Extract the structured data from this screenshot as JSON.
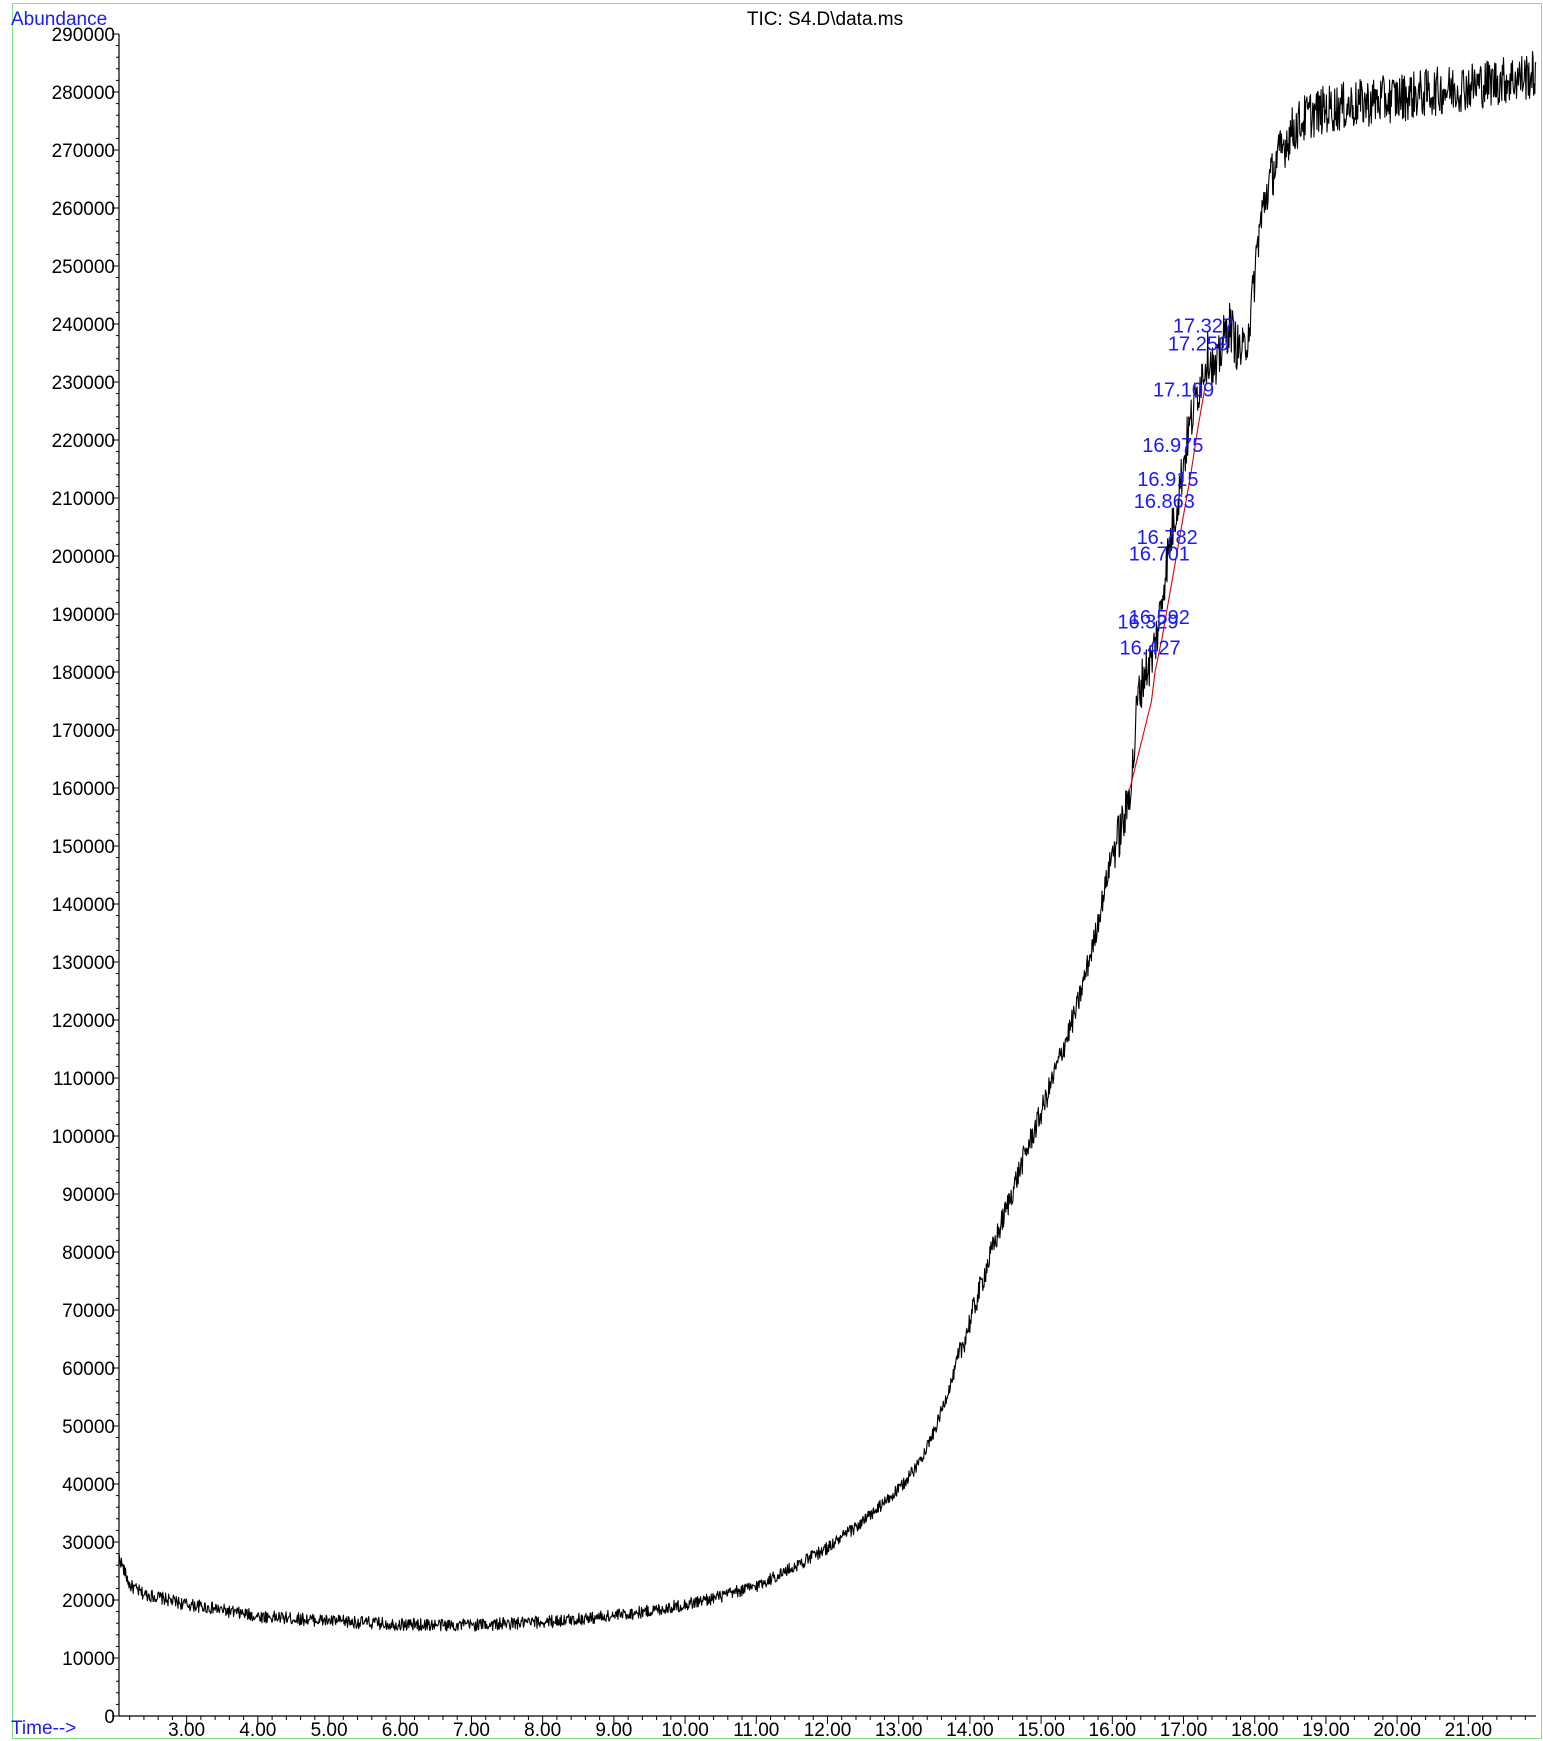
{
  "chart_data": {
    "type": "line",
    "title": "TIC: S4.D\\data.ms",
    "ylabel": "Abundance",
    "xlabel": "Time-->",
    "xlim": [
      2.05,
      21.95
    ],
    "ylim": [
      0,
      290000
    ],
    "y_ticks": [
      0,
      10000,
      20000,
      30000,
      40000,
      50000,
      60000,
      70000,
      80000,
      90000,
      100000,
      110000,
      120000,
      130000,
      140000,
      150000,
      160000,
      170000,
      180000,
      190000,
      200000,
      210000,
      220000,
      230000,
      240000,
      250000,
      260000,
      270000,
      280000,
      290000
    ],
    "y_tick_labels": [
      "0",
      "10000",
      "20000",
      "30000",
      "40000",
      "50000",
      "60000",
      "70000",
      "80000",
      "90000",
      "100000",
      "110000",
      "120000",
      "130000",
      "140000",
      "150000",
      "160000",
      "170000",
      "180000",
      "190000",
      "200000",
      "210000",
      "220000",
      "230000",
      "240000",
      "250000",
      "260000",
      "270000",
      "280000",
      "290000"
    ],
    "x_ticks": [
      3,
      4,
      5,
      6,
      7,
      8,
      9,
      10,
      11,
      12,
      13,
      14,
      15,
      16,
      17,
      18,
      19,
      20,
      21
    ],
    "x_tick_labels": [
      "3.00",
      "4.00",
      "5.00",
      "6.00",
      "7.00",
      "8.00",
      "9.00",
      "10.00",
      "11.00",
      "12.00",
      "13.00",
      "14.00",
      "15.00",
      "16.00",
      "17.00",
      "18.00",
      "19.00",
      "20.00",
      "21.00"
    ],
    "grid": false,
    "series": [
      {
        "color": "#000000",
        "x": [
          2.05,
          2.2,
          2.4,
          2.6,
          2.8,
          3.0,
          3.2,
          3.4,
          3.6,
          3.8,
          4.0,
          4.5,
          5.0,
          5.5,
          6.0,
          6.5,
          7.0,
          7.5,
          8.0,
          8.5,
          9.0,
          9.5,
          10.0,
          10.5,
          11.0,
          11.5,
          12.0,
          12.5,
          13.0,
          13.25,
          13.5,
          13.75,
          14.0,
          14.25,
          14.5,
          14.75,
          15.0,
          15.25,
          15.5,
          15.75,
          16.0,
          16.1,
          16.2,
          16.3,
          16.35,
          16.45,
          16.55,
          16.65,
          16.75,
          16.85,
          16.95,
          17.05,
          17.15,
          17.25,
          17.35,
          17.45,
          17.55,
          17.65,
          17.75,
          17.85,
          17.95,
          18.05,
          18.15,
          18.3,
          18.5,
          18.75,
          19.0,
          19.5,
          20.0,
          20.5,
          21.0,
          21.5,
          21.95
        ],
        "y": [
          27500,
          22500,
          21000,
          20500,
          19800,
          19200,
          18900,
          18500,
          18000,
          17600,
          17200,
          16800,
          16400,
          16100,
          15800,
          15700,
          15700,
          15900,
          16200,
          16700,
          17300,
          18100,
          19200,
          20600,
          22400,
          25500,
          29000,
          33500,
          39000,
          43000,
          49000,
          58000,
          68000,
          78000,
          87000,
          96000,
          104000,
          113000,
          122000,
          134000,
          149000,
          152000,
          156000,
          165000,
          175000,
          180000,
          182000,
          188000,
          198000,
          205000,
          212000,
          220000,
          226000,
          231000,
          235000,
          231000,
          237000,
          240000,
          236000,
          235000,
          242000,
          255000,
          262000,
          268000,
          273000,
          276000,
          277000,
          278000,
          279000,
          280000,
          281000,
          282000,
          283000
        ]
      },
      {
        "color": "#e60000",
        "x": [
          16.25,
          16.35,
          16.45,
          16.55,
          16.6,
          16.7,
          16.8,
          16.9,
          17.0,
          17.1,
          17.2,
          17.3
        ],
        "y": [
          160000,
          165000,
          170000,
          175000,
          180000,
          186000,
          193000,
          200000,
          207000,
          214000,
          222000,
          229000
        ]
      }
    ],
    "annotations": [
      "16.329",
      "16.592",
      "16.427",
      "16.701",
      "16.782",
      "16.863",
      "16.915",
      "16.975",
      "17.109",
      "17.259",
      "17.327"
    ],
    "annotation_points": [
      {
        "x": 16.5,
        "y": 187500
      },
      {
        "x": 16.66,
        "y": 188300
      },
      {
        "x": 16.53,
        "y": 183000
      },
      {
        "x": 16.66,
        "y": 199200
      },
      {
        "x": 16.77,
        "y": 202100
      },
      {
        "x": 16.73,
        "y": 208300
      },
      {
        "x": 16.78,
        "y": 212100
      },
      {
        "x": 16.85,
        "y": 217900
      },
      {
        "x": 17.0,
        "y": 227500
      },
      {
        "x": 17.21,
        "y": 235400
      },
      {
        "x": 17.28,
        "y": 238500
      }
    ]
  }
}
